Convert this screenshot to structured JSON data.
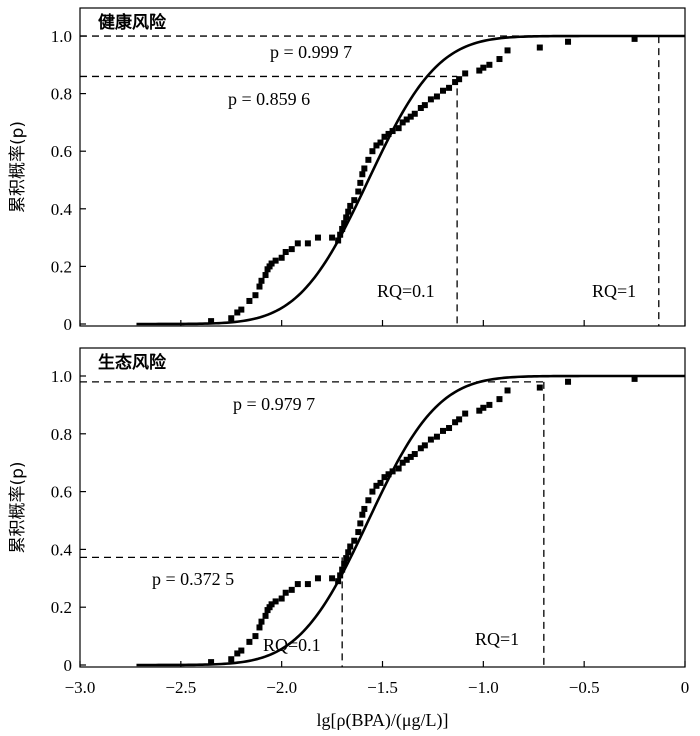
{
  "x_axis": {
    "label": "lg[ρ(BPA)/(μg/L)]",
    "range": [
      -3.0,
      0
    ],
    "ticks": [
      -3.0,
      -2.5,
      -2.0,
      -1.5,
      -1.0,
      -0.5,
      0
    ],
    "tick_labels": [
      "−3.0",
      "−2.5",
      "−2.0",
      "−1.5",
      "−1.0",
      "−0.5",
      "0"
    ]
  },
  "chart_data": [
    {
      "type": "scatter",
      "title": "健康风险",
      "ylabel": "累积概率(p)",
      "ylim": [
        0,
        1.0
      ],
      "yticks": [
        0,
        0.2,
        0.4,
        0.6,
        0.8,
        1.0
      ],
      "ytick_labels": [
        "0",
        "0.2",
        "0.4",
        "0.6",
        "0.8",
        "1.0"
      ],
      "fit_curve": {
        "mu": -1.57,
        "sigma": 0.27,
        "x_start": -2.72,
        "x_end": 0
      },
      "points": [
        [
          -2.35,
          0.01
        ],
        [
          -2.25,
          0.02
        ],
        [
          -2.22,
          0.04
        ],
        [
          -2.2,
          0.05
        ],
        [
          -2.16,
          0.08
        ],
        [
          -2.13,
          0.1
        ],
        [
          -2.11,
          0.13
        ],
        [
          -2.1,
          0.15
        ],
        [
          -2.08,
          0.17
        ],
        [
          -2.07,
          0.19
        ],
        [
          -2.06,
          0.2
        ],
        [
          -2.05,
          0.21
        ],
        [
          -2.03,
          0.22
        ],
        [
          -2.0,
          0.23
        ],
        [
          -1.98,
          0.25
        ],
        [
          -1.95,
          0.26
        ],
        [
          -1.92,
          0.28
        ],
        [
          -1.87,
          0.28
        ],
        [
          -1.82,
          0.3
        ],
        [
          -1.75,
          0.3
        ],
        [
          -1.72,
          0.29
        ],
        [
          -1.71,
          0.31
        ],
        [
          -1.7,
          0.33
        ],
        [
          -1.69,
          0.35
        ],
        [
          -1.68,
          0.37
        ],
        [
          -1.67,
          0.39
        ],
        [
          -1.66,
          0.41
        ],
        [
          -1.64,
          0.43
        ],
        [
          -1.62,
          0.46
        ],
        [
          -1.61,
          0.49
        ],
        [
          -1.6,
          0.52
        ],
        [
          -1.59,
          0.54
        ],
        [
          -1.57,
          0.57
        ],
        [
          -1.55,
          0.6
        ],
        [
          -1.53,
          0.62
        ],
        [
          -1.51,
          0.63
        ],
        [
          -1.49,
          0.65
        ],
        [
          -1.47,
          0.66
        ],
        [
          -1.45,
          0.67
        ],
        [
          -1.42,
          0.68
        ],
        [
          -1.4,
          0.7
        ],
        [
          -1.38,
          0.71
        ],
        [
          -1.36,
          0.72
        ],
        [
          -1.34,
          0.73
        ],
        [
          -1.31,
          0.75
        ],
        [
          -1.29,
          0.76
        ],
        [
          -1.26,
          0.78
        ],
        [
          -1.23,
          0.79
        ],
        [
          -1.2,
          0.81
        ],
        [
          -1.17,
          0.82
        ],
        [
          -1.14,
          0.84
        ],
        [
          -1.12,
          0.85
        ],
        [
          -1.09,
          0.87
        ],
        [
          -1.02,
          0.88
        ],
        [
          -1.0,
          0.89
        ],
        [
          -0.97,
          0.9
        ],
        [
          -0.92,
          0.92
        ],
        [
          -0.88,
          0.95
        ],
        [
          -0.72,
          0.96
        ],
        [
          -0.58,
          0.98
        ],
        [
          -0.25,
          0.99
        ]
      ],
      "thresholds": [
        {
          "label": "RQ=0.1",
          "x": -1.13,
          "p": 0.8596,
          "p_label": "p = 0.859 6"
        },
        {
          "label": "RQ=1",
          "x": -0.13,
          "p": 0.9997,
          "p_label": "p = 0.999 7"
        }
      ]
    },
    {
      "type": "scatter",
      "title": "生态风险",
      "ylabel": "累积概率(p)",
      "ylim": [
        0,
        1.0
      ],
      "yticks": [
        0,
        0.2,
        0.4,
        0.6,
        0.8,
        1.0
      ],
      "ytick_labels": [
        "0",
        "0.2",
        "0.4",
        "0.6",
        "0.8",
        "1.0"
      ],
      "fit_curve": {
        "mu": -1.57,
        "sigma": 0.27,
        "x_start": -2.72,
        "x_end": 0
      },
      "points": [
        [
          -2.35,
          0.01
        ],
        [
          -2.25,
          0.02
        ],
        [
          -2.22,
          0.04
        ],
        [
          -2.2,
          0.05
        ],
        [
          -2.16,
          0.08
        ],
        [
          -2.13,
          0.1
        ],
        [
          -2.11,
          0.13
        ],
        [
          -2.1,
          0.15
        ],
        [
          -2.08,
          0.17
        ],
        [
          -2.07,
          0.19
        ],
        [
          -2.06,
          0.2
        ],
        [
          -2.05,
          0.21
        ],
        [
          -2.03,
          0.22
        ],
        [
          -2.0,
          0.23
        ],
        [
          -1.98,
          0.25
        ],
        [
          -1.95,
          0.26
        ],
        [
          -1.92,
          0.28
        ],
        [
          -1.87,
          0.28
        ],
        [
          -1.82,
          0.3
        ],
        [
          -1.75,
          0.3
        ],
        [
          -1.72,
          0.29
        ],
        [
          -1.71,
          0.31
        ],
        [
          -1.7,
          0.33
        ],
        [
          -1.69,
          0.35
        ],
        [
          -1.68,
          0.37
        ],
        [
          -1.67,
          0.39
        ],
        [
          -1.66,
          0.41
        ],
        [
          -1.64,
          0.43
        ],
        [
          -1.62,
          0.46
        ],
        [
          -1.61,
          0.49
        ],
        [
          -1.6,
          0.52
        ],
        [
          -1.59,
          0.54
        ],
        [
          -1.57,
          0.57
        ],
        [
          -1.55,
          0.6
        ],
        [
          -1.53,
          0.62
        ],
        [
          -1.51,
          0.63
        ],
        [
          -1.49,
          0.65
        ],
        [
          -1.47,
          0.66
        ],
        [
          -1.45,
          0.67
        ],
        [
          -1.42,
          0.68
        ],
        [
          -1.4,
          0.7
        ],
        [
          -1.38,
          0.71
        ],
        [
          -1.36,
          0.72
        ],
        [
          -1.34,
          0.73
        ],
        [
          -1.31,
          0.75
        ],
        [
          -1.29,
          0.76
        ],
        [
          -1.26,
          0.78
        ],
        [
          -1.23,
          0.79
        ],
        [
          -1.2,
          0.81
        ],
        [
          -1.17,
          0.82
        ],
        [
          -1.14,
          0.84
        ],
        [
          -1.12,
          0.85
        ],
        [
          -1.09,
          0.87
        ],
        [
          -1.02,
          0.88
        ],
        [
          -1.0,
          0.89
        ],
        [
          -0.97,
          0.9
        ],
        [
          -0.92,
          0.92
        ],
        [
          -0.88,
          0.95
        ],
        [
          -0.72,
          0.96
        ],
        [
          -0.58,
          0.98
        ],
        [
          -0.25,
          0.99
        ]
      ],
      "thresholds": [
        {
          "label": "RQ=0.1",
          "x": -1.7,
          "p": 0.3725,
          "p_label": "p = 0.372 5"
        },
        {
          "label": "RQ=1",
          "x": -0.7,
          "p": 0.9797,
          "p_label": "p = 0.979 7"
        }
      ]
    }
  ]
}
